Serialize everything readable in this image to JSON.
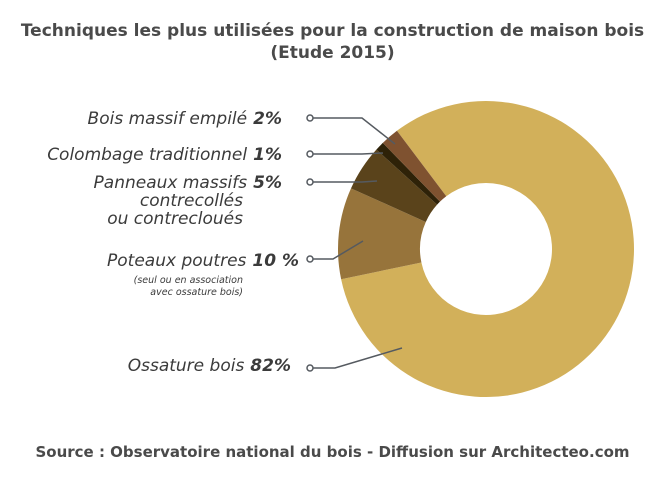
{
  "chart_data": {
    "type": "pie",
    "donut": true,
    "title": "Techniques les plus utilisées pour la construction de maison bois",
    "subtitle": "(Etude 2015)",
    "source": "Source : Observatoire national du bois - Diffusion sur Architecteo.com",
    "slices": [
      {
        "label": "Ossature bois",
        "value": 82,
        "value_label": "82%",
        "color": "#d2b05a"
      },
      {
        "label": "Poteaux poutres",
        "value": 10,
        "value_label": "10 %",
        "note": [
          "(seul ou en association",
          "avec ossature bois)"
        ],
        "color": "#97743b"
      },
      {
        "label": "Panneaux massifs",
        "label_lines": [
          "contrecollés",
          "ou contrecloués"
        ],
        "value": 5,
        "value_label": "5%",
        "color": "#5a431b"
      },
      {
        "label": "Colombage traditionnel",
        "value": 1,
        "value_label": "1%",
        "color": "#2e2208"
      },
      {
        "label": "Bois massif empilé",
        "value": 2,
        "value_label": "2%",
        "color": "#7f5230"
      }
    ]
  }
}
